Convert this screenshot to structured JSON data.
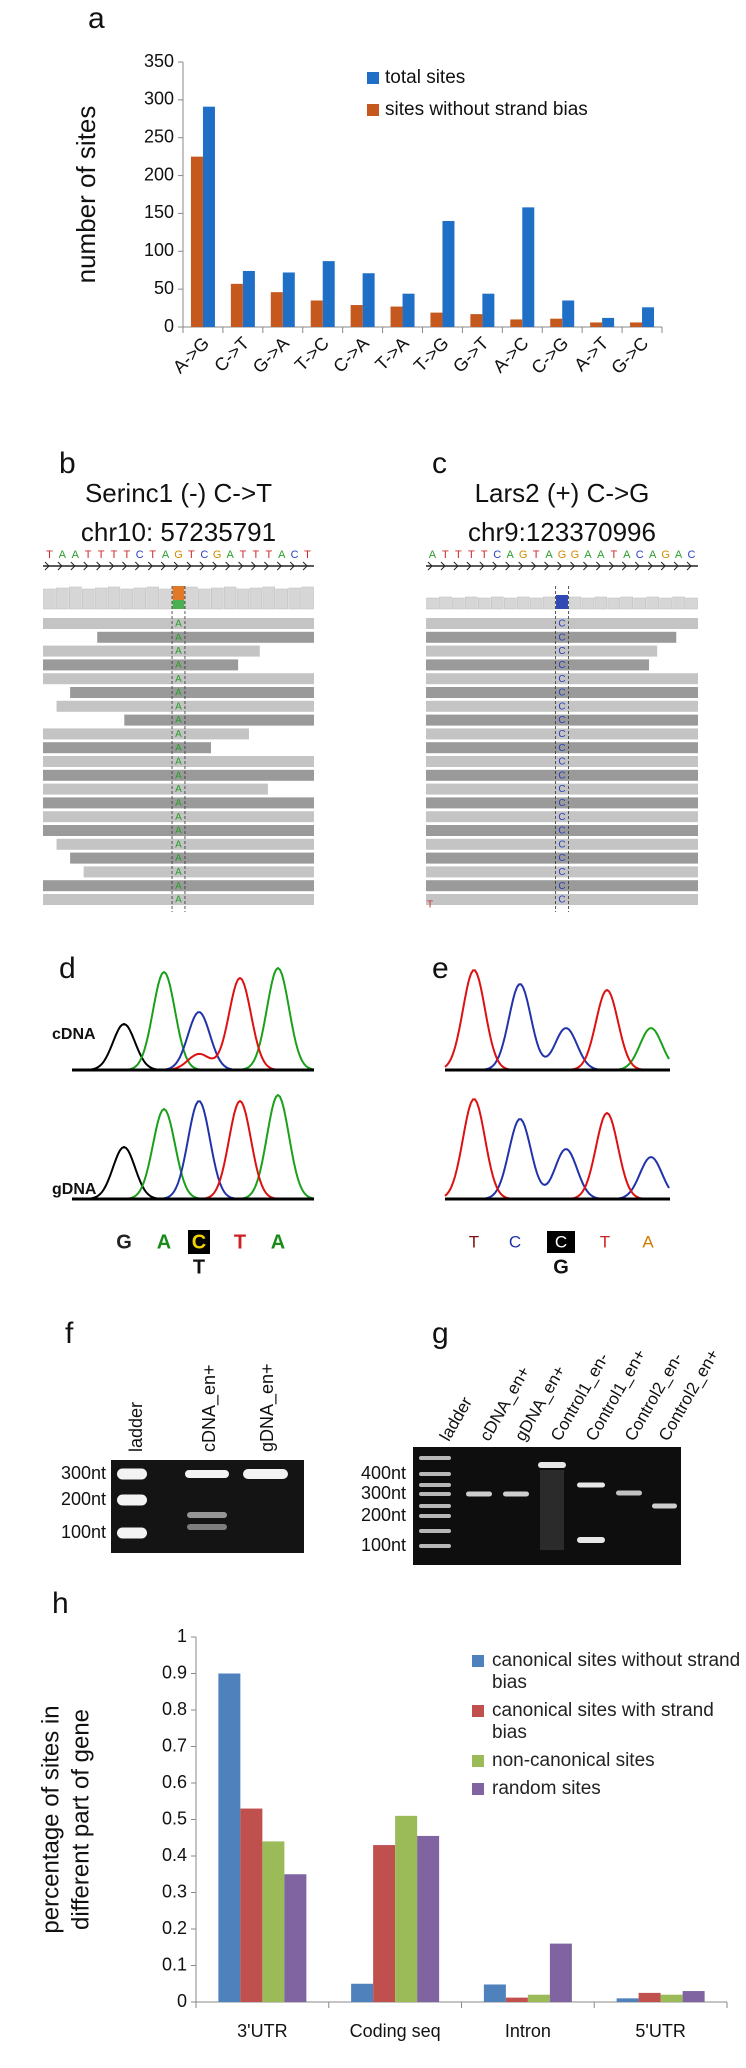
{
  "chart_data": [
    {
      "type": "bar",
      "panel": "a",
      "ylabel": "number of sites",
      "categories": [
        "A->G",
        "C->T",
        "G->A",
        "T->C",
        "C->A",
        "T->A",
        "T->G",
        "G->T",
        "A->C",
        "C->G",
        "A->T",
        "G->C"
      ],
      "series": [
        {
          "name": "total sites",
          "color": "#1f6fc6",
          "values": [
            291,
            74,
            72,
            87,
            71,
            44,
            140,
            44,
            158,
            35,
            12,
            26
          ]
        },
        {
          "name": "sites without strand bias",
          "color": "#c5581c",
          "values": [
            225,
            57,
            46,
            35,
            29,
            27,
            19,
            17,
            10,
            11,
            6,
            6
          ]
        }
      ],
      "ylim": [
        0,
        350
      ],
      "yticks": [
        0,
        50,
        100,
        150,
        200,
        250,
        300,
        350
      ],
      "grid": false,
      "legend": "upper right"
    },
    {
      "type": "bar",
      "panel": "h",
      "ylabel": [
        "percentage of sites in",
        "different part of gene"
      ],
      "categories": [
        "3'UTR",
        "Coding seq",
        "Intron",
        "5'UTR"
      ],
      "series": [
        {
          "name": "canonical sites without strand bias",
          "color": "#4f81bd",
          "values": [
            0.9,
            0.05,
            0.048,
            0.01
          ]
        },
        {
          "name": "canonical sites with strand bias",
          "color": "#c0504d",
          "values": [
            0.53,
            0.43,
            0.012,
            0.025
          ]
        },
        {
          "name": "non-canonical sites",
          "color": "#9bbb59",
          "values": [
            0.44,
            0.51,
            0.02,
            0.02
          ]
        },
        {
          "name": "random sites",
          "color": "#8064a2",
          "values": [
            0.35,
            0.455,
            0.16,
            0.03
          ]
        }
      ],
      "ylim": [
        0,
        1
      ],
      "yticks": [
        0,
        0.1,
        0.2,
        0.3,
        0.4,
        0.5,
        0.6,
        0.7,
        0.8,
        0.9,
        1
      ],
      "grid": false,
      "legend": "upper right"
    }
  ],
  "panels": {
    "b": {
      "label": "b",
      "title": [
        "Serinc1 (-) C->T",
        "chr10: 57235791"
      ],
      "sequence": [
        "T",
        "A",
        "A",
        "T",
        "T",
        "T",
        "T",
        "C",
        "T",
        "A",
        "G",
        "T",
        "C",
        "G",
        "A",
        "T",
        "T",
        "T",
        "A",
        "C",
        "T"
      ],
      "read_base": "A"
    },
    "c": {
      "label": "c",
      "title": [
        "Lars2 (+) C->G",
        "chr9:123370996"
      ],
      "sequence": [
        "A",
        "T",
        "T",
        "T",
        "T",
        "C",
        "A",
        "G",
        "T",
        "A",
        "G",
        "G",
        "A",
        "A",
        "T",
        "A",
        "C",
        "A",
        "G",
        "A",
        "C"
      ],
      "read_base": "C",
      "other_base": "T"
    },
    "d": {
      "label": "d",
      "rows": [
        "cDNA",
        "gDNA"
      ],
      "bases": [
        "G",
        "A",
        "C",
        "T",
        "A"
      ],
      "alt_base": "T"
    },
    "e": {
      "label": "e",
      "bases": [
        "T",
        "C",
        "C",
        "T",
        "A"
      ],
      "alt_base": "G"
    },
    "f": {
      "label": "f",
      "lanes": [
        "ladder",
        "cDNA_en+",
        "gDNA_en+"
      ],
      "sizes": [
        "300nt",
        "200nt",
        "100nt"
      ]
    },
    "g": {
      "label": "g",
      "lanes": [
        "ladder",
        "cDNA_en+",
        "gDNA_en+",
        "Control1_en-",
        "Control1_en+",
        "Control2_en-",
        "Control2_en+"
      ],
      "sizes": [
        "400nt",
        "300nt",
        "200nt",
        "100nt"
      ]
    }
  }
}
